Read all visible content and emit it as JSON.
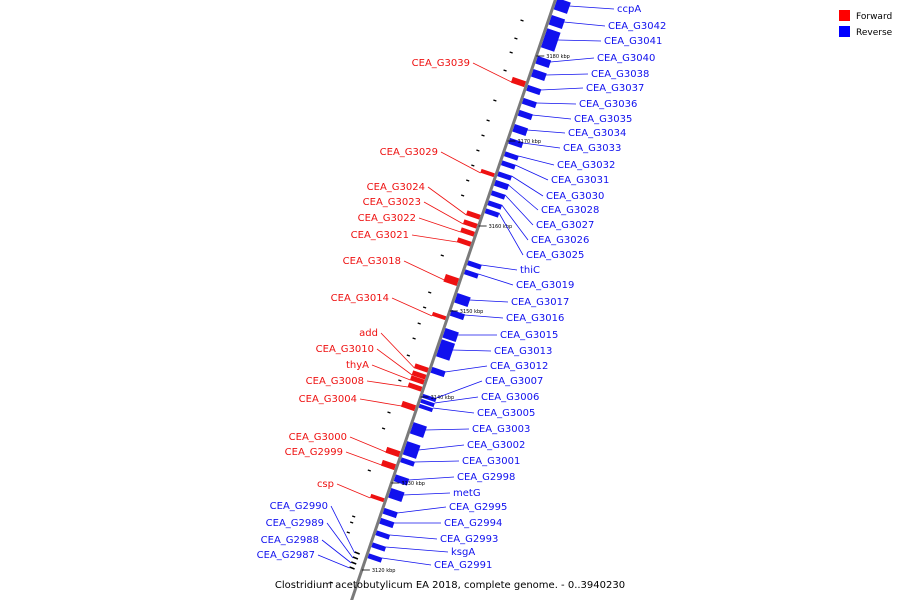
{
  "legend": [
    {
      "label": "Forward",
      "color": "#ff0000"
    },
    {
      "label": "Reverse",
      "color": "#0000ff"
    }
  ],
  "caption": "Clostridium acetobutylicum EA 2018, complete genome. - 0..3940230",
  "colors": {
    "forward": "#ee1111",
    "reverse": "#1111ee",
    "axis": "#7a7a7a"
  },
  "reverse_genes": [
    "ccpA",
    "CEA_G3042",
    "CEA_G3041",
    "CEA_G3040",
    "CEA_G3038",
    "CEA_G3037",
    "CEA_G3036",
    "CEA_G3035",
    "CEA_G3034",
    "CEA_G3033",
    "CEA_G3032",
    "CEA_G3031",
    "CEA_G3030",
    "CEA_G3028",
    "CEA_G3027",
    "CEA_G3026",
    "CEA_G3025",
    "thiC",
    "CEA_G3019",
    "CEA_G3017",
    "CEA_G3016",
    "CEA_G3015",
    "CEA_G3013",
    "CEA_G3012",
    "CEA_G3007",
    "CEA_G3006",
    "CEA_G3005",
    "CEA_G3003",
    "CEA_G3002",
    "CEA_G3001",
    "CEA_G2998",
    "metG",
    "CEA_G2995",
    "CEA_G2994",
    "CEA_G2993",
    "ksgA",
    "CEA_G2991"
  ],
  "forward_genes": [
    "CEA_G3039",
    "CEA_G3029",
    "CEA_G3024",
    "CEA_G3023",
    "CEA_G3022",
    "CEA_G3021",
    "CEA_G3018",
    "CEA_G3014",
    "add",
    "CEA_G3010",
    "thyA",
    "CEA_G3008",
    "CEA_G3004",
    "CEA_G3000",
    "CEA_G2999",
    "csp"
  ],
  "other_genes": [
    "CEA_G2990",
    "CEA_G2989",
    "CEA_G2988",
    "CEA_G2987"
  ],
  "kbp_ticks": [
    "3180 kbp",
    "3170 kbp",
    "3160 kbp",
    "3150 kbp",
    "3140 kbp",
    "3130 kbp",
    "3120 kbp"
  ]
}
